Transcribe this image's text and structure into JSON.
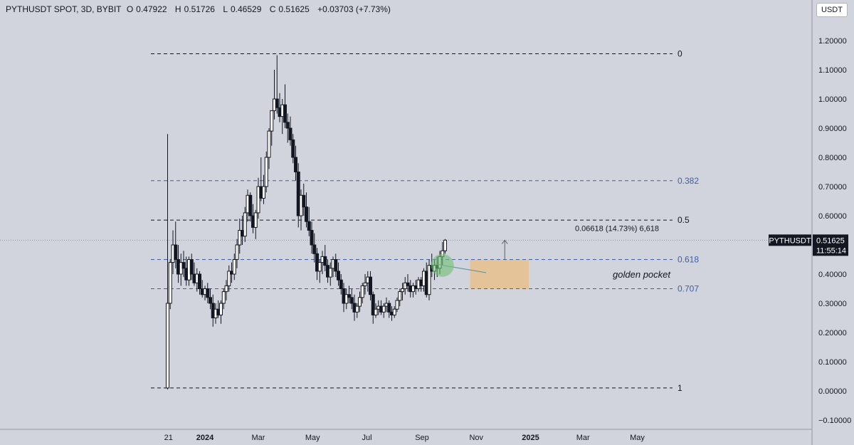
{
  "header": {
    "symbol": "PYTHUSDT SPOT, 3D, BYBIT",
    "open_label": "O",
    "open": "0.47922",
    "high_label": "H",
    "high": "0.51726",
    "low_label": "L",
    "low": "0.46529",
    "close_label": "C",
    "close": "0.51625",
    "change": "+0.03703 (+7.73%)"
  },
  "currency_button": "USDT",
  "price_tag": {
    "symbol": "PYTHUSDT",
    "price": "0.51625",
    "countdown": "11:55:14"
  },
  "measure_label": "0.06618 (14.73%) 6,618",
  "zone_label": "golden pocket",
  "colors": {
    "background": "#d1d4dc",
    "fib_blue": "#3d5fa8",
    "zone": "#e8c08c",
    "highlight": "#6fbf73"
  },
  "chart_data": {
    "type": "candlestick",
    "y_ticks": [
      "1.20000",
      "1.10000",
      "1.00000",
      "0.90000",
      "0.80000",
      "0.70000",
      "0.60000",
      "0.50000",
      "0.40000",
      "0.30000",
      "0.20000",
      "0.10000",
      "0.00000",
      "−0.10000"
    ],
    "ylim": [
      -0.1,
      1.2
    ],
    "x_ticks": [
      "21",
      "2024",
      "Mar",
      "May",
      "Jul",
      "Sep",
      "Nov",
      "2025",
      "Mar",
      "May"
    ],
    "x_tick_values": [
      "2023-11-21",
      "2024-01-01",
      "2024-03-01",
      "2024-05-01",
      "2024-07-01",
      "2024-09-01",
      "2024-11-01",
      "2025-01-01",
      "2025-03-01",
      "2025-05-01"
    ],
    "fib_levels": [
      {
        "label": "0",
        "price": 1.155,
        "color": "black"
      },
      {
        "label": "0.382",
        "price": 0.72,
        "color": "blue"
      },
      {
        "label": "0.5",
        "price": 0.585,
        "color": "black"
      },
      {
        "label": "0.618",
        "price": 0.45,
        "color": "blue"
      },
      {
        "label": "0.707",
        "price": 0.35,
        "color": "blue"
      },
      {
        "label": "1",
        "price": 0.01,
        "color": "black"
      }
    ],
    "golden_pocket": {
      "from_date": "2024-10-25",
      "to_date": "2024-12-30",
      "high": 0.45,
      "low": 0.35
    },
    "measure": {
      "date": "2024-12-03",
      "from": 0.45,
      "to": 0.516
    },
    "trendline": [
      {
        "date": "2024-09-15",
        "price": 0.435
      },
      {
        "date": "2024-11-12",
        "price": 0.405
      }
    ],
    "current_price": 0.51625,
    "candles_every_3_days_from": "2023-11-20",
    "ohlc": [
      [
        0.01,
        0.88,
        0.005,
        0.3
      ],
      [
        0.3,
        0.45,
        0.28,
        0.44
      ],
      [
        0.44,
        0.55,
        0.4,
        0.5
      ],
      [
        0.5,
        0.58,
        0.42,
        0.45
      ],
      [
        0.45,
        0.5,
        0.37,
        0.4
      ],
      [
        0.4,
        0.47,
        0.36,
        0.44
      ],
      [
        0.44,
        0.48,
        0.39,
        0.42
      ],
      [
        0.42,
        0.46,
        0.36,
        0.38
      ],
      [
        0.38,
        0.46,
        0.36,
        0.45
      ],
      [
        0.45,
        0.47,
        0.38,
        0.4
      ],
      [
        0.4,
        0.44,
        0.36,
        0.37
      ],
      [
        0.37,
        0.42,
        0.34,
        0.4
      ],
      [
        0.4,
        0.41,
        0.33,
        0.35
      ],
      [
        0.35,
        0.38,
        0.32,
        0.33
      ],
      [
        0.33,
        0.36,
        0.31,
        0.35
      ],
      [
        0.35,
        0.37,
        0.3,
        0.32
      ],
      [
        0.32,
        0.35,
        0.28,
        0.3
      ],
      [
        0.3,
        0.33,
        0.22,
        0.25
      ],
      [
        0.25,
        0.3,
        0.23,
        0.28
      ],
      [
        0.28,
        0.31,
        0.25,
        0.26
      ],
      [
        0.26,
        0.31,
        0.23,
        0.3
      ],
      [
        0.3,
        0.35,
        0.28,
        0.34
      ],
      [
        0.34,
        0.38,
        0.31,
        0.36
      ],
      [
        0.36,
        0.43,
        0.34,
        0.41
      ],
      [
        0.41,
        0.44,
        0.37,
        0.4
      ],
      [
        0.4,
        0.47,
        0.38,
        0.45
      ],
      [
        0.45,
        0.52,
        0.42,
        0.5
      ],
      [
        0.5,
        0.59,
        0.47,
        0.55
      ],
      [
        0.55,
        0.6,
        0.5,
        0.53
      ],
      [
        0.53,
        0.63,
        0.51,
        0.61
      ],
      [
        0.61,
        0.69,
        0.58,
        0.67
      ],
      [
        0.67,
        0.68,
        0.58,
        0.6
      ],
      [
        0.6,
        0.64,
        0.54,
        0.56
      ],
      [
        0.56,
        0.62,
        0.52,
        0.61
      ],
      [
        0.61,
        0.73,
        0.59,
        0.7
      ],
      [
        0.7,
        0.8,
        0.65,
        0.66
      ],
      [
        0.66,
        0.74,
        0.64,
        0.7
      ],
      [
        0.7,
        0.82,
        0.68,
        0.8
      ],
      [
        0.8,
        0.9,
        0.76,
        0.89
      ],
      [
        0.89,
        0.95,
        0.84,
        0.96
      ],
      [
        0.96,
        1.1,
        0.93,
        1.0
      ],
      [
        1.0,
        1.15,
        0.95,
        0.97
      ],
      [
        0.97,
        1.02,
        0.92,
        0.94
      ],
      [
        0.94,
        1.0,
        0.88,
        0.98
      ],
      [
        0.98,
        1.05,
        0.9,
        0.92
      ],
      [
        0.92,
        0.95,
        0.85,
        0.9
      ],
      [
        0.9,
        0.94,
        0.84,
        0.86
      ],
      [
        0.86,
        0.88,
        0.78,
        0.8
      ],
      [
        0.8,
        0.84,
        0.72,
        0.75
      ],
      [
        0.75,
        0.78,
        0.56,
        0.6
      ],
      [
        0.6,
        0.69,
        0.55,
        0.67
      ],
      [
        0.67,
        0.71,
        0.6,
        0.63
      ],
      [
        0.63,
        0.68,
        0.56,
        0.58
      ],
      [
        0.58,
        0.63,
        0.53,
        0.55
      ],
      [
        0.55,
        0.58,
        0.47,
        0.5
      ],
      [
        0.5,
        0.54,
        0.44,
        0.47
      ],
      [
        0.47,
        0.49,
        0.38,
        0.41
      ],
      [
        0.41,
        0.45,
        0.37,
        0.44
      ],
      [
        0.44,
        0.48,
        0.4,
        0.46
      ],
      [
        0.46,
        0.5,
        0.41,
        0.43
      ],
      [
        0.43,
        0.45,
        0.37,
        0.39
      ],
      [
        0.39,
        0.44,
        0.36,
        0.42
      ],
      [
        0.42,
        0.46,
        0.39,
        0.45
      ],
      [
        0.45,
        0.47,
        0.39,
        0.41
      ],
      [
        0.41,
        0.44,
        0.36,
        0.38
      ],
      [
        0.38,
        0.4,
        0.33,
        0.35
      ],
      [
        0.35,
        0.37,
        0.27,
        0.3
      ],
      [
        0.3,
        0.35,
        0.28,
        0.33
      ],
      [
        0.33,
        0.36,
        0.3,
        0.32
      ],
      [
        0.32,
        0.35,
        0.28,
        0.3
      ],
      [
        0.3,
        0.33,
        0.24,
        0.27
      ],
      [
        0.27,
        0.3,
        0.25,
        0.29
      ],
      [
        0.29,
        0.34,
        0.27,
        0.32
      ],
      [
        0.32,
        0.37,
        0.3,
        0.36
      ],
      [
        0.36,
        0.4,
        0.33,
        0.37
      ],
      [
        0.37,
        0.41,
        0.34,
        0.39
      ],
      [
        0.39,
        0.41,
        0.31,
        0.33
      ],
      [
        0.33,
        0.34,
        0.23,
        0.26
      ],
      [
        0.26,
        0.3,
        0.25,
        0.28
      ],
      [
        0.28,
        0.31,
        0.26,
        0.29
      ],
      [
        0.29,
        0.31,
        0.26,
        0.27
      ],
      [
        0.27,
        0.3,
        0.25,
        0.29
      ],
      [
        0.29,
        0.32,
        0.27,
        0.3
      ],
      [
        0.3,
        0.31,
        0.25,
        0.27
      ],
      [
        0.27,
        0.29,
        0.24,
        0.26
      ],
      [
        0.26,
        0.29,
        0.25,
        0.28
      ],
      [
        0.28,
        0.32,
        0.27,
        0.31
      ],
      [
        0.31,
        0.35,
        0.29,
        0.34
      ],
      [
        0.34,
        0.37,
        0.31,
        0.35
      ],
      [
        0.35,
        0.39,
        0.33,
        0.37
      ],
      [
        0.37,
        0.4,
        0.34,
        0.36
      ],
      [
        0.36,
        0.38,
        0.32,
        0.34
      ],
      [
        0.34,
        0.37,
        0.32,
        0.36
      ],
      [
        0.36,
        0.38,
        0.33,
        0.35
      ],
      [
        0.35,
        0.39,
        0.34,
        0.38
      ],
      [
        0.38,
        0.39,
        0.34,
        0.36
      ],
      [
        0.36,
        0.42,
        0.34,
        0.41
      ],
      [
        0.41,
        0.44,
        0.32,
        0.33
      ],
      [
        0.33,
        0.45,
        0.31,
        0.43
      ],
      [
        0.43,
        0.47,
        0.39,
        0.41
      ],
      [
        0.41,
        0.45,
        0.38,
        0.43
      ],
      [
        0.43,
        0.46,
        0.39,
        0.42
      ],
      [
        0.42,
        0.48,
        0.4,
        0.46
      ],
      [
        0.46,
        0.51,
        0.43,
        0.48
      ],
      [
        0.48,
        0.52,
        0.47,
        0.51625
      ]
    ]
  }
}
